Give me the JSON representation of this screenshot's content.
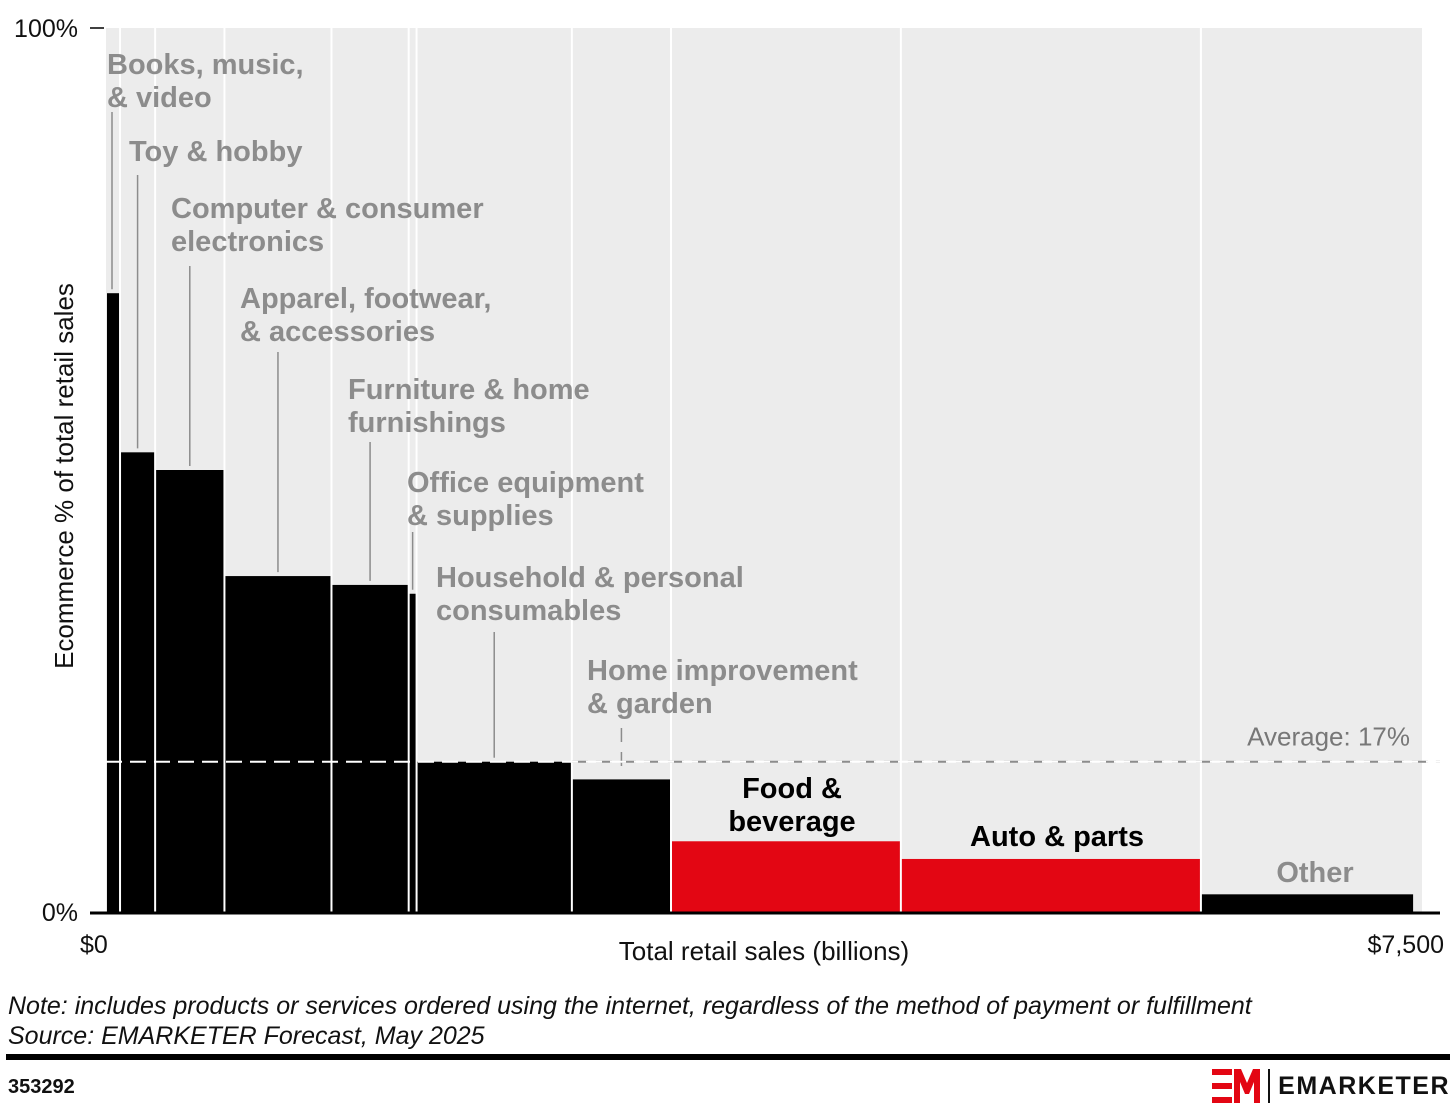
{
  "chart_data": {
    "type": "variable-width bar (marimekko)",
    "xlabel": "Total retail sales (billions)",
    "ylabel": "Ecommerce % of total retail sales",
    "x_range": [
      0,
      7500
    ],
    "x_tick_labels": [
      "$0",
      "$7,500"
    ],
    "ylim": [
      0,
      100
    ],
    "y_tick_labels": [
      "0%",
      "100%"
    ],
    "average": {
      "value": 17,
      "label": "Average: 17%"
    },
    "colors": {
      "default": "#000000",
      "highlight": "#e30613",
      "plot_bg": "#ececec",
      "label": "#8c8c8c"
    },
    "categories": [
      {
        "label": "Books, music, & video",
        "label_lines": [
          "Books, music,",
          "& video"
        ],
        "start": 0,
        "width": 80,
        "value": 70,
        "color": "black"
      },
      {
        "label": "Toy & hobby",
        "label_lines": [
          "Toy & hobby"
        ],
        "start": 80,
        "width": 200,
        "value": 52,
        "color": "black"
      },
      {
        "label": "Computer & consumer electronics",
        "label_lines": [
          "Computer & consumer",
          "electronics"
        ],
        "start": 280,
        "width": 395,
        "value": 50,
        "color": "black"
      },
      {
        "label": "Apparel, footwear, & accessories",
        "label_lines": [
          "Apparel, footwear,",
          "& accessories"
        ],
        "start": 675,
        "width": 610,
        "value": 38,
        "color": "black"
      },
      {
        "label": "Furniture & home furnishings",
        "label_lines": [
          "Furniture & home",
          "furnishings"
        ],
        "start": 1285,
        "width": 440,
        "value": 37,
        "color": "black"
      },
      {
        "label": "Office equipment & supplies",
        "label_lines": [
          "Office equipment",
          "& supplies"
        ],
        "start": 1725,
        "width": 45,
        "value": 36,
        "color": "black"
      },
      {
        "label": "Household & personal consumables",
        "label_lines": [
          "Household & personal",
          "consumables"
        ],
        "start": 1770,
        "width": 885,
        "value": 17,
        "color": "black"
      },
      {
        "label": "Home improvement & garden",
        "label_lines": [
          "Home improvement",
          "& garden"
        ],
        "start": 2655,
        "width": 565,
        "value": 15,
        "color": "black"
      },
      {
        "label": "Food & beverage",
        "label_lines": [
          "Food &",
          "beverage"
        ],
        "start": 3220,
        "width": 1310,
        "value": 8,
        "color": "red"
      },
      {
        "label": "Auto & parts",
        "label_lines": [
          "Auto & parts"
        ],
        "start": 4530,
        "width": 1710,
        "value": 6,
        "color": "red"
      },
      {
        "label": "Other",
        "label_lines": [
          "Other"
        ],
        "start": 6240,
        "width": 1215,
        "value": 2,
        "color": "black"
      }
    ]
  },
  "footer": {
    "note": "Note: includes products or services ordered using the internet, regardless of the method of payment or fulfillment",
    "source": "Source: EMARKETER Forecast, May 2025",
    "chart_id": "353292",
    "brand": "EMARKETER"
  }
}
